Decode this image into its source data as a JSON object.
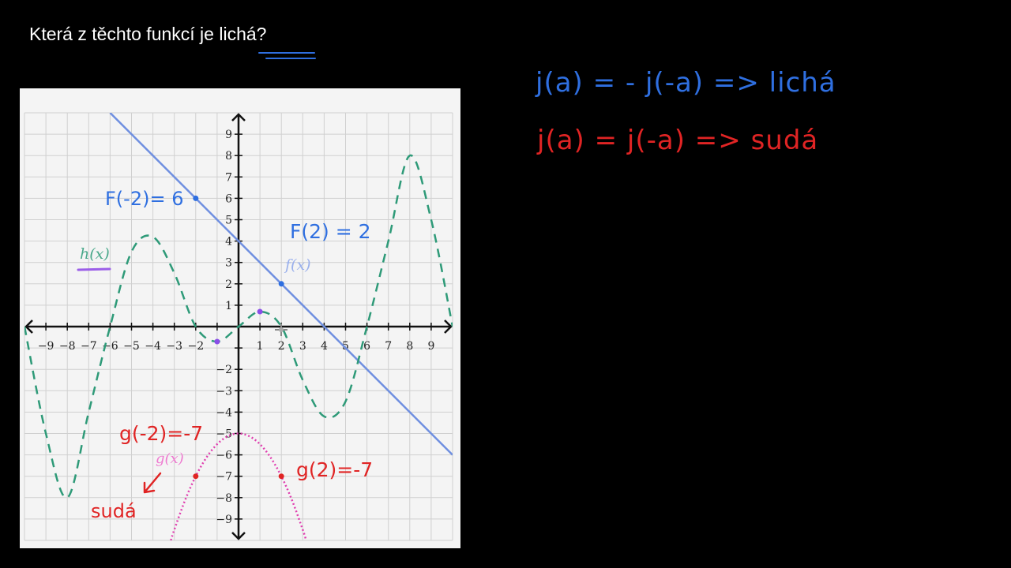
{
  "header": {
    "title_prefix": "Která z těchto funkcí je ",
    "title_highlight": "lichá",
    "title_suffix": "?"
  },
  "rules": {
    "odd": {
      "text": "j(a) = - j(-a) => lichá",
      "color": "#2f6fe0"
    },
    "even": {
      "text": "j(a) = j(-a) => sudá",
      "color": "#e02424"
    }
  },
  "annotations": {
    "f_neg2": "F(-2)= 6",
    "f_2": "F(2) = 2",
    "g_neg2": "g(-2)=-7",
    "g_2": "g(2)=-7",
    "g_verdict": "sudá",
    "h_label": "h(x)",
    "f_label": "f(x)",
    "g_label": "g(x)"
  },
  "chart_data": {
    "type": "line",
    "xlim": [
      -10,
      10
    ],
    "ylim": [
      -10,
      10
    ],
    "grid": true,
    "x_tick_labels": [
      "−9",
      "−8",
      "−7",
      "−6",
      "−5",
      "−4",
      "−3",
      "−2",
      "1",
      "2",
      "3",
      "4",
      "5",
      "6",
      "7",
      "8",
      "9"
    ],
    "x_tick_values": [
      -9,
      -8,
      -7,
      -6,
      -5,
      -4,
      -3,
      -2,
      1,
      2,
      3,
      4,
      5,
      6,
      7,
      8,
      9
    ],
    "y_tick_labels": [
      "9",
      "8",
      "7",
      "6",
      "5",
      "4",
      "3",
      "2",
      "1",
      "−2",
      "−3",
      "−4",
      "−5",
      "−6",
      "−7",
      "−8",
      "−9"
    ],
    "y_tick_values": [
      9,
      8,
      7,
      6,
      5,
      4,
      3,
      2,
      1,
      -2,
      -3,
      -4,
      -5,
      -6,
      -7,
      -8,
      -9
    ],
    "series": [
      {
        "name": "f(x)",
        "style": "solid",
        "color": "#6f8fe0",
        "x": [
          -6,
          10
        ],
        "y": [
          10,
          -6
        ]
      },
      {
        "name": "h(x)",
        "style": "dashed",
        "color": "#2e9a78",
        "x": [
          -10,
          -9,
          -8,
          -7,
          -6,
          -5,
          -4,
          -3,
          -2,
          -1,
          0,
          1,
          2,
          3,
          4,
          5,
          6,
          7,
          8,
          9,
          10
        ],
        "y": [
          0,
          -5,
          -8,
          -4,
          0,
          3.5,
          4.2,
          2.5,
          0,
          -0.7,
          0,
          0.7,
          0,
          -2.5,
          -4.2,
          -3.5,
          0,
          4,
          8,
          5,
          0
        ]
      },
      {
        "name": "g(x)",
        "style": "dotted",
        "color": "#e040b0",
        "x": [
          -3.16,
          -3,
          -2.5,
          -2,
          -1.5,
          -1,
          -0.5,
          0,
          0.5,
          1,
          1.5,
          2,
          2.5,
          3,
          3.16
        ],
        "y": [
          -10,
          -9.5,
          -8.125,
          -7,
          -6.125,
          -5.5,
          -5.125,
          -5,
          -5.125,
          -5.5,
          -6.125,
          -7,
          -8.125,
          -9.5,
          -10
        ]
      }
    ],
    "marked_points": [
      {
        "x": -2,
        "y": 6,
        "color": "#2f6fe0"
      },
      {
        "x": 2,
        "y": 2,
        "color": "#2f6fe0"
      },
      {
        "x": -1,
        "y": -0.7,
        "color": "#8a4fe8"
      },
      {
        "x": 1,
        "y": 0.7,
        "color": "#8a4fe8"
      },
      {
        "x": -2,
        "y": -7,
        "color": "#e02424"
      },
      {
        "x": 2,
        "y": -7,
        "color": "#e02424"
      }
    ]
  }
}
